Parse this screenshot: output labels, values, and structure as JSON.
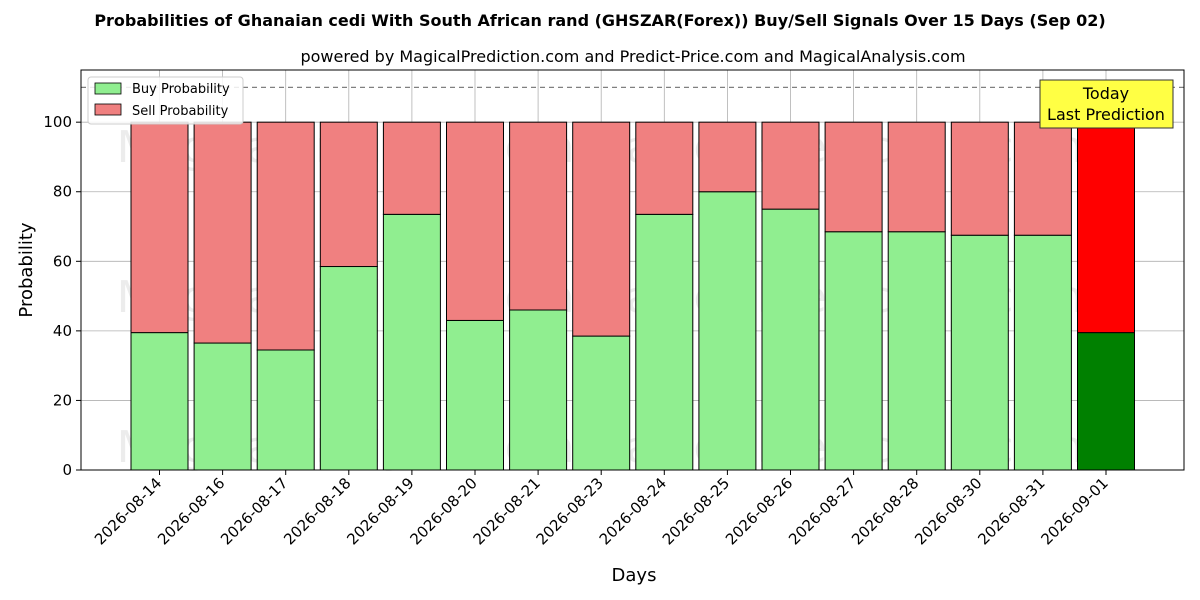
{
  "chart_data": {
    "type": "bar",
    "stacked": true,
    "title": "Probabilities of Ghanaian cedi With South African rand (GHSZAR(Forex)) Buy/Sell Signals Over 15 Days (Sep 02)",
    "subtitle": "powered by MagicalPrediction.com and Predict-Price.com and MagicalAnalysis.com",
    "xlabel": "Days",
    "ylabel": "Probability",
    "ylim": [
      0,
      115
    ],
    "yticks": [
      0,
      20,
      40,
      60,
      80,
      100
    ],
    "reference_line": 110,
    "grid": true,
    "legend_position": "top-left",
    "categories": [
      "2026-08-14",
      "2026-08-16",
      "2026-08-17",
      "2026-08-18",
      "2026-08-19",
      "2026-08-20",
      "2026-08-21",
      "2026-08-23",
      "2026-08-24",
      "2026-08-25",
      "2026-08-26",
      "2026-08-27",
      "2026-08-28",
      "2026-08-30",
      "2026-08-31",
      "2026-09-01"
    ],
    "series": [
      {
        "name": "Buy Probability",
        "values": [
          39.5,
          36.5,
          34.5,
          58.5,
          73.5,
          43.0,
          46.0,
          38.5,
          73.5,
          80.0,
          75.0,
          68.5,
          68.5,
          67.5,
          67.5,
          39.5
        ]
      },
      {
        "name": "Sell Probability",
        "values": [
          60.5,
          63.5,
          65.5,
          41.5,
          26.5,
          57.0,
          54.0,
          61.5,
          26.5,
          20.0,
          25.0,
          31.5,
          31.5,
          32.5,
          32.5,
          60.5
        ]
      }
    ],
    "annotation": {
      "lines": [
        "Today",
        "Last Prediction"
      ],
      "category_index": 15
    },
    "watermark": "MagicalAnalysis.com   MagicalPrediction.com",
    "colors": {
      "buy": "#90ee90",
      "sell": "#f08080",
      "buy_highlight": "#008000",
      "sell_highlight": "#ff0000",
      "annotation_bg": "#ffff44",
      "grid": "#b0b0b0",
      "watermark": "#c8c8c8"
    }
  }
}
